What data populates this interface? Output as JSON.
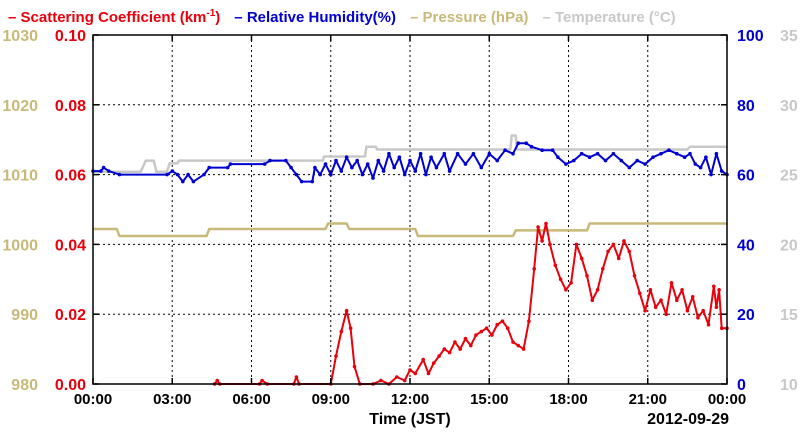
{
  "chart_data": {
    "type": "line",
    "legend": {
      "scatter": "Scattering Coefficient (km",
      "scatter_sup": "-1",
      "scatter_close": ")",
      "rh": "Relative Humidity(%)",
      "pressure": "Pressure (hPa)",
      "temperature": "Temperature (°C)",
      "dash": "–"
    },
    "xlabel": "Time (JST)",
    "date": "2012-09-29",
    "x_ticks": [
      "00:00",
      "03:00",
      "06:00",
      "09:00",
      "12:00",
      "15:00",
      "18:00",
      "21:00",
      "00:00"
    ],
    "xlim": [
      0,
      24
    ],
    "axes": {
      "pressure": {
        "ticks": [
          "980",
          "990",
          "1000",
          "1010",
          "1020",
          "1030"
        ],
        "ylim": [
          980,
          1030
        ],
        "color": "#c8b978"
      },
      "scatter": {
        "ticks": [
          "0.00",
          "0.02",
          "0.04",
          "0.06",
          "0.08",
          "0.10"
        ],
        "ylim": [
          0,
          0.1
        ],
        "color": "#e8000b"
      },
      "rh": {
        "ticks": [
          "0",
          "20",
          "40",
          "60",
          "80",
          "100"
        ],
        "ylim": [
          0,
          100
        ],
        "color": "#0000d0"
      },
      "temperature": {
        "ticks": [
          "10",
          "15",
          "20",
          "25",
          "30",
          "35"
        ],
        "ylim": [
          10,
          35
        ],
        "color": "#c8c8c8"
      }
    },
    "grid": true,
    "series": [
      {
        "name": "Temperature (°C)",
        "axis": "temperature",
        "points": [
          [
            0,
            25.2
          ],
          [
            1.8,
            25.2
          ],
          [
            2.0,
            26.0
          ],
          [
            2.3,
            26.0
          ],
          [
            2.4,
            25.2
          ],
          [
            2.8,
            25.2
          ],
          [
            2.9,
            25.8
          ],
          [
            3.2,
            25.8
          ],
          [
            3.25,
            26.0
          ],
          [
            8.7,
            26.0
          ],
          [
            8.75,
            26.3
          ],
          [
            10.3,
            26.3
          ],
          [
            10.35,
            27.0
          ],
          [
            10.7,
            27.0
          ],
          [
            10.75,
            26.8
          ],
          [
            15.8,
            26.8
          ],
          [
            15.85,
            27.8
          ],
          [
            16.0,
            27.8
          ],
          [
            16.05,
            26.8
          ],
          [
            22.5,
            26.8
          ],
          [
            22.6,
            27.0
          ],
          [
            24,
            27.0
          ]
        ]
      },
      {
        "name": "Pressure (hPa)",
        "axis": "pressure",
        "points": [
          [
            0,
            1002.2
          ],
          [
            0.9,
            1002.2
          ],
          [
            1.0,
            1001.2
          ],
          [
            4.3,
            1001.2
          ],
          [
            4.4,
            1002.2
          ],
          [
            8.8,
            1002.2
          ],
          [
            8.9,
            1003.0
          ],
          [
            9.6,
            1003.0
          ],
          [
            9.7,
            1002.2
          ],
          [
            12.2,
            1002.2
          ],
          [
            12.3,
            1001.2
          ],
          [
            15.9,
            1001.2
          ],
          [
            16.0,
            1002.0
          ],
          [
            18.7,
            1002.0
          ],
          [
            18.8,
            1003.0
          ],
          [
            24,
            1003.0
          ]
        ]
      },
      {
        "name": "Relative Humidity(%)",
        "axis": "rh",
        "points": [
          [
            0,
            61
          ],
          [
            0.3,
            61
          ],
          [
            0.4,
            62
          ],
          [
            0.6,
            61
          ],
          [
            1.0,
            60
          ],
          [
            2.8,
            60
          ],
          [
            3.0,
            61
          ],
          [
            3.2,
            60
          ],
          [
            3.4,
            58
          ],
          [
            3.6,
            60
          ],
          [
            3.8,
            58
          ],
          [
            4.2,
            60
          ],
          [
            4.4,
            62
          ],
          [
            5.1,
            62
          ],
          [
            5.2,
            63
          ],
          [
            6.5,
            63
          ],
          [
            6.7,
            64
          ],
          [
            7.3,
            64
          ],
          [
            7.5,
            62
          ],
          [
            7.7,
            60
          ],
          [
            7.9,
            58
          ],
          [
            8.3,
            58
          ],
          [
            8.4,
            62
          ],
          [
            8.6,
            60
          ],
          [
            8.8,
            63
          ],
          [
            9.0,
            60
          ],
          [
            9.2,
            64
          ],
          [
            9.4,
            61
          ],
          [
            9.6,
            65
          ],
          [
            9.8,
            62
          ],
          [
            10.0,
            64
          ],
          [
            10.2,
            60
          ],
          [
            10.4,
            63
          ],
          [
            10.6,
            59
          ],
          [
            10.8,
            64
          ],
          [
            11.0,
            61
          ],
          [
            11.2,
            66
          ],
          [
            11.4,
            62
          ],
          [
            11.6,
            65
          ],
          [
            11.8,
            60
          ],
          [
            12.0,
            64
          ],
          [
            12.2,
            61
          ],
          [
            12.4,
            66
          ],
          [
            12.6,
            60
          ],
          [
            12.8,
            65
          ],
          [
            13.0,
            62
          ],
          [
            13.3,
            66
          ],
          [
            13.5,
            61
          ],
          [
            13.8,
            66
          ],
          [
            14.1,
            63
          ],
          [
            14.4,
            66
          ],
          [
            14.7,
            62
          ],
          [
            15.0,
            66
          ],
          [
            15.3,
            64
          ],
          [
            15.6,
            67
          ],
          [
            15.9,
            66
          ],
          [
            16.1,
            69
          ],
          [
            16.4,
            69
          ],
          [
            16.6,
            68
          ],
          [
            17.0,
            67
          ],
          [
            17.4,
            67
          ],
          [
            17.6,
            65
          ],
          [
            17.9,
            63
          ],
          [
            18.2,
            64
          ],
          [
            18.5,
            66
          ],
          [
            18.8,
            65
          ],
          [
            19.1,
            66
          ],
          [
            19.4,
            64
          ],
          [
            19.7,
            66
          ],
          [
            20.0,
            64
          ],
          [
            20.3,
            62
          ],
          [
            20.6,
            64
          ],
          [
            20.9,
            63
          ],
          [
            21.2,
            65
          ],
          [
            21.5,
            66
          ],
          [
            21.8,
            67
          ],
          [
            22.1,
            66
          ],
          [
            22.4,
            65
          ],
          [
            22.6,
            66
          ],
          [
            22.8,
            63
          ],
          [
            23.0,
            62
          ],
          [
            23.2,
            65
          ],
          [
            23.4,
            60
          ],
          [
            23.6,
            66
          ],
          [
            23.8,
            61
          ],
          [
            24,
            60
          ]
        ]
      },
      {
        "name": "Scattering Coefficient (km-1)",
        "axis": "scatter",
        "points": [
          [
            4.6,
            0.0
          ],
          [
            4.7,
            0.001
          ],
          [
            4.8,
            0.0
          ],
          [
            6.3,
            0.0
          ],
          [
            6.4,
            0.001
          ],
          [
            6.6,
            0.0
          ],
          [
            7.6,
            0.0
          ],
          [
            7.7,
            0.002
          ],
          [
            7.8,
            0.0
          ],
          [
            9.0,
            0.0
          ],
          [
            9.2,
            0.008
          ],
          [
            9.4,
            0.015
          ],
          [
            9.6,
            0.021
          ],
          [
            9.75,
            0.016
          ],
          [
            9.9,
            0.005
          ],
          [
            10.1,
            0.0
          ],
          [
            10.6,
            0.0
          ],
          [
            10.9,
            0.001
          ],
          [
            11.2,
            0.0
          ],
          [
            11.5,
            0.002
          ],
          [
            11.8,
            0.001
          ],
          [
            12.0,
            0.004
          ],
          [
            12.2,
            0.003
          ],
          [
            12.5,
            0.007
          ],
          [
            12.7,
            0.003
          ],
          [
            12.9,
            0.006
          ],
          [
            13.1,
            0.008
          ],
          [
            13.3,
            0.01
          ],
          [
            13.5,
            0.009
          ],
          [
            13.7,
            0.012
          ],
          [
            13.9,
            0.01
          ],
          [
            14.1,
            0.013
          ],
          [
            14.3,
            0.011
          ],
          [
            14.5,
            0.014
          ],
          [
            14.7,
            0.015
          ],
          [
            14.9,
            0.016
          ],
          [
            15.1,
            0.014
          ],
          [
            15.3,
            0.017
          ],
          [
            15.5,
            0.018
          ],
          [
            15.7,
            0.016
          ],
          [
            15.9,
            0.012
          ],
          [
            16.1,
            0.011
          ],
          [
            16.3,
            0.01
          ],
          [
            16.5,
            0.018
          ],
          [
            16.7,
            0.033
          ],
          [
            16.85,
            0.045
          ],
          [
            17.0,
            0.041
          ],
          [
            17.15,
            0.046
          ],
          [
            17.3,
            0.04
          ],
          [
            17.5,
            0.034
          ],
          [
            17.7,
            0.03
          ],
          [
            17.9,
            0.027
          ],
          [
            18.1,
            0.029
          ],
          [
            18.3,
            0.04
          ],
          [
            18.5,
            0.036
          ],
          [
            18.7,
            0.031
          ],
          [
            18.9,
            0.024
          ],
          [
            19.1,
            0.027
          ],
          [
            19.3,
            0.033
          ],
          [
            19.5,
            0.038
          ],
          [
            19.7,
            0.04
          ],
          [
            19.9,
            0.036
          ],
          [
            20.1,
            0.041
          ],
          [
            20.3,
            0.038
          ],
          [
            20.5,
            0.031
          ],
          [
            20.7,
            0.026
          ],
          [
            20.9,
            0.021
          ],
          [
            21.1,
            0.027
          ],
          [
            21.3,
            0.022
          ],
          [
            21.5,
            0.024
          ],
          [
            21.7,
            0.02
          ],
          [
            21.9,
            0.029
          ],
          [
            22.1,
            0.024
          ],
          [
            22.3,
            0.027
          ],
          [
            22.5,
            0.021
          ],
          [
            22.7,
            0.025
          ],
          [
            22.9,
            0.019
          ],
          [
            23.1,
            0.021
          ],
          [
            23.3,
            0.017
          ],
          [
            23.5,
            0.028
          ],
          [
            23.6,
            0.022
          ],
          [
            23.7,
            0.027
          ],
          [
            23.8,
            0.016
          ],
          [
            24,
            0.016
          ]
        ]
      }
    ]
  }
}
